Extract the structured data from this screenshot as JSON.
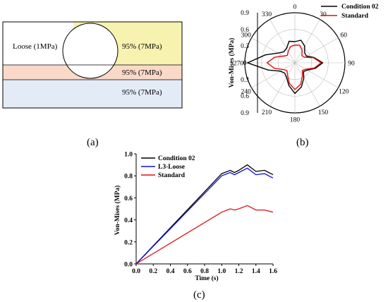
{
  "panel_a": {
    "caption": "(a)",
    "labels": {
      "loose": "Loose (1MPa)",
      "top_right": "95% (7MPa)",
      "middle": "95% (7MPa)",
      "bottom": "95% (7MPa)"
    },
    "colors": {
      "top_right": "#f7f2b0",
      "middle": "#fbd9c8",
      "bottom": "#e3ecf6"
    }
  },
  "panel_b": {
    "caption": "(b)",
    "ylabel": "Von-Mises (MPa)",
    "r_ticks": [
      "0.9",
      "0.6",
      "0.3",
      "0",
      "0.3",
      "0.6",
      "0.9"
    ],
    "angle_ticks": [
      "0",
      "30",
      "60",
      "90",
      "120",
      "150",
      "180",
      "210",
      "240",
      "270",
      "300",
      "330"
    ]
  },
  "panel_c": {
    "caption": "(c)"
  },
  "chart_data": [
    {
      "type": "polar",
      "ylabel": "Von-Mises (MPa)",
      "rlim": [
        0,
        0.9
      ],
      "r_ticks": [
        0,
        0.3,
        0.6,
        0.9
      ],
      "theta_ticks": [
        0,
        30,
        60,
        90,
        120,
        150,
        180,
        210,
        240,
        270,
        300,
        330
      ],
      "legend": "top-right",
      "series": [
        {
          "name": "Condition 02",
          "color": "#000000",
          "theta": [
            0,
            15,
            30,
            45,
            60,
            75,
            90,
            105,
            120,
            135,
            150,
            165,
            180,
            195,
            210,
            225,
            240,
            255,
            270,
            285,
            300,
            315,
            330,
            345,
            360
          ],
          "r": [
            0.38,
            0.42,
            0.35,
            0.25,
            0.24,
            0.36,
            0.5,
            0.38,
            0.26,
            0.22,
            0.32,
            0.45,
            0.55,
            0.42,
            0.3,
            0.26,
            0.3,
            0.5,
            0.85,
            0.55,
            0.35,
            0.28,
            0.3,
            0.4,
            0.38
          ]
        },
        {
          "name": "Standard",
          "color": "#e01010",
          "theta": [
            0,
            15,
            30,
            45,
            60,
            75,
            90,
            105,
            120,
            135,
            150,
            165,
            180,
            195,
            210,
            225,
            240,
            255,
            270,
            285,
            300,
            315,
            330,
            345,
            360
          ],
          "r": [
            0.32,
            0.33,
            0.26,
            0.18,
            0.2,
            0.35,
            0.47,
            0.36,
            0.23,
            0.19,
            0.27,
            0.4,
            0.48,
            0.38,
            0.26,
            0.2,
            0.24,
            0.38,
            0.5,
            0.38,
            0.24,
            0.19,
            0.24,
            0.3,
            0.32
          ]
        }
      ]
    },
    {
      "type": "line",
      "xlabel": "Time (s)",
      "ylabel": "Von-Mises (MPa)",
      "xlim": [
        0.0,
        1.6
      ],
      "ylim": [
        0.0,
        1.0
      ],
      "x_ticks": [
        "0.0",
        "0.2",
        "0.4",
        "0.6",
        "0.8",
        "1.0",
        "1.2",
        "1.4",
        "1.6"
      ],
      "y_ticks": [
        "0.0",
        "0.2",
        "0.4",
        "0.6",
        "0.8",
        "1.0"
      ],
      "legend": "top-left",
      "series": [
        {
          "name": "Condition 02",
          "color": "#000000",
          "x": [
            0.0,
            1.0,
            1.1,
            1.15,
            1.2,
            1.3,
            1.4,
            1.5,
            1.6
          ],
          "y": [
            0.0,
            0.82,
            0.85,
            0.83,
            0.85,
            0.9,
            0.84,
            0.85,
            0.81
          ]
        },
        {
          "name": "L3-Loose",
          "color": "#1010e0",
          "x": [
            0.0,
            1.0,
            1.1,
            1.15,
            1.2,
            1.3,
            1.4,
            1.5,
            1.6
          ],
          "y": [
            0.0,
            0.8,
            0.83,
            0.81,
            0.83,
            0.87,
            0.81,
            0.82,
            0.78
          ]
        },
        {
          "name": "Standard",
          "color": "#e01010",
          "x": [
            0.0,
            1.0,
            1.1,
            1.15,
            1.2,
            1.3,
            1.4,
            1.5,
            1.6
          ],
          "y": [
            0.0,
            0.47,
            0.5,
            0.49,
            0.5,
            0.53,
            0.49,
            0.49,
            0.47
          ]
        }
      ]
    }
  ]
}
